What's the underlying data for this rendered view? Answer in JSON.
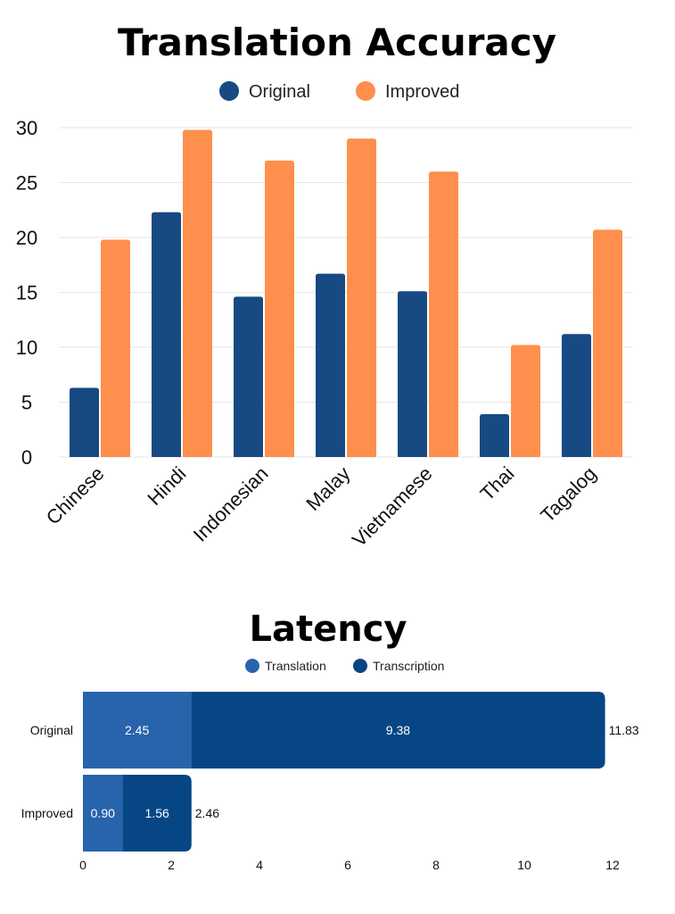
{
  "chart_data": [
    {
      "type": "bar",
      "title": "Translation Accuracy",
      "categories": [
        "Chinese",
        "Hindi",
        "Indonesian",
        "Malay",
        "Vietnamese",
        "Thai",
        "Tagalog"
      ],
      "series": [
        {
          "name": "Original",
          "values": [
            6.3,
            22.3,
            14.6,
            16.7,
            15.1,
            3.9,
            11.2
          ],
          "color": "#174a82"
        },
        {
          "name": "Improved",
          "values": [
            19.8,
            29.8,
            27.0,
            29.0,
            26.0,
            10.2,
            20.7
          ],
          "color": "#ff8f4d"
        }
      ],
      "yticks": [
        "0",
        "5",
        "10",
        "15",
        "20",
        "25",
        "30"
      ],
      "ylim": [
        0,
        30
      ],
      "grid": true,
      "legend": "top-center"
    },
    {
      "type": "bar",
      "orientation": "horizontal",
      "stacked": true,
      "title": "Latency",
      "categories": [
        "Original",
        "Improved"
      ],
      "series": [
        {
          "name": "Translation",
          "values": [
            2.45,
            0.9
          ],
          "labels": [
            "2.45",
            "0.90"
          ],
          "color": "#2864ac"
        },
        {
          "name": "Transcription",
          "values": [
            9.38,
            1.56
          ],
          "labels": [
            "9.38",
            "1.56"
          ],
          "color": "#064684"
        }
      ],
      "totals": [
        "11.83",
        "2.46"
      ],
      "xticks": [
        "0",
        "2",
        "4",
        "6",
        "8",
        "10",
        "12"
      ],
      "xlim": [
        0,
        12
      ],
      "legend": "top-center"
    }
  ]
}
